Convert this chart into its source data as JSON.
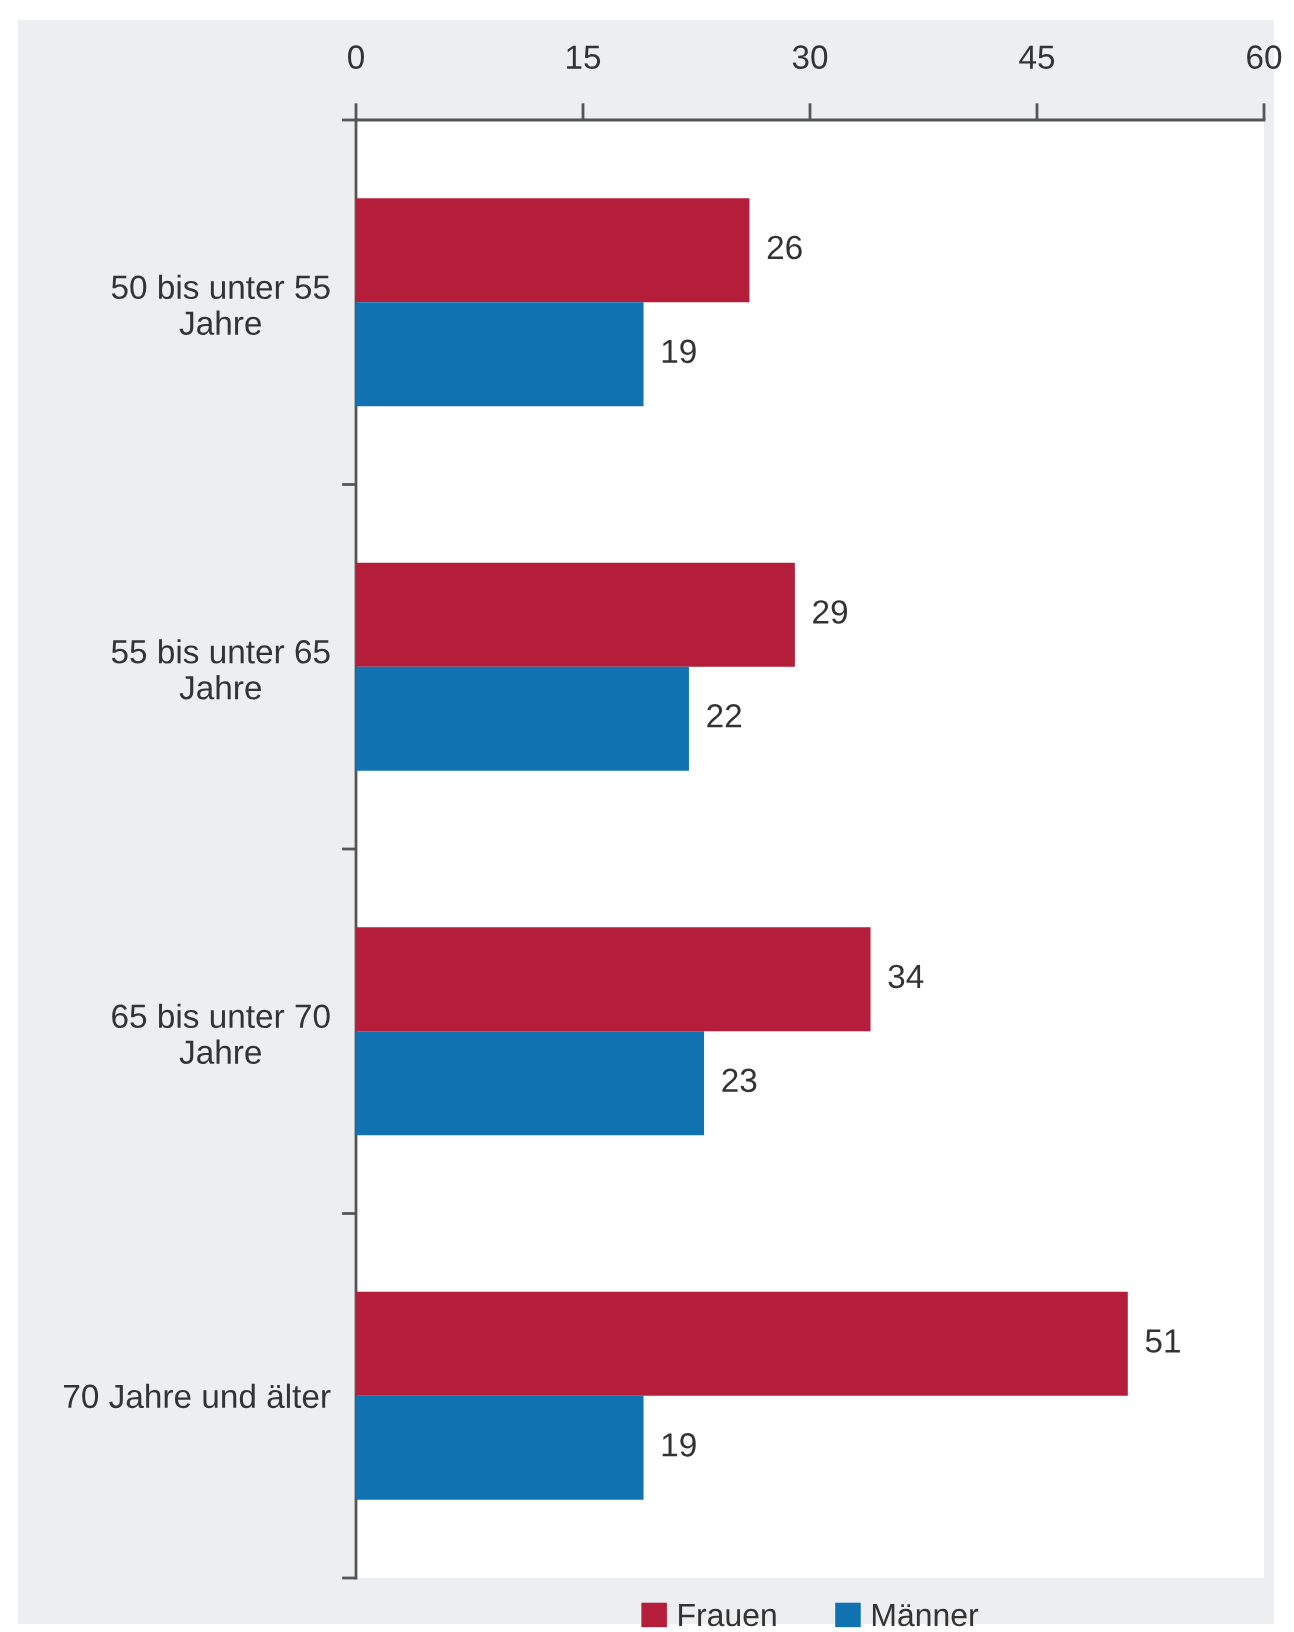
{
  "chart_data": {
    "type": "bar",
    "orientation": "horizontal",
    "categories": [
      "50 bis unter 55 Jahre",
      "55 bis unter 65 Jahre",
      "65 bis unter 70 Jahre",
      "70 Jahre und älter"
    ],
    "series": [
      {
        "name": "Frauen",
        "color": "#b41e3a",
        "values": [
          26,
          29,
          34,
          51
        ]
      },
      {
        "name": "Männer",
        "color": "#1072b0",
        "values": [
          19,
          22,
          23,
          19
        ]
      }
    ],
    "xlim": [
      0,
      60
    ],
    "xticks": [
      0,
      15,
      30,
      45,
      60
    ],
    "data_labels": true,
    "legend": "bottom"
  }
}
